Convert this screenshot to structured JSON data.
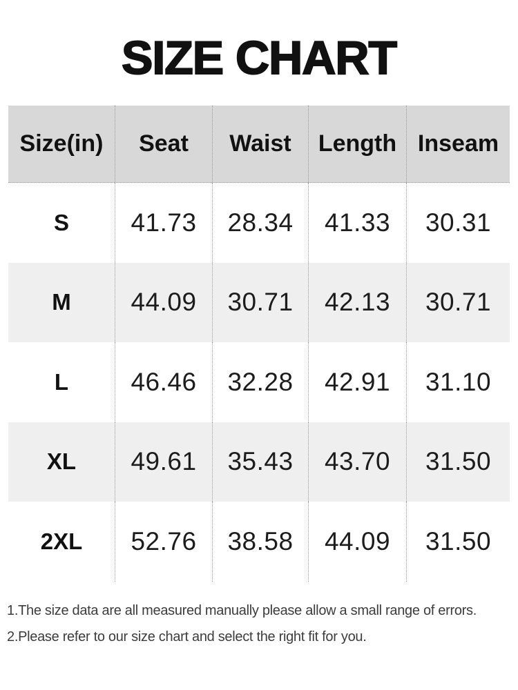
{
  "title": "SIZE CHART",
  "chart_data": {
    "type": "table",
    "title": "SIZE CHART",
    "columns": [
      "Size(in)",
      "Seat",
      "Waist",
      "Length",
      "Inseam"
    ],
    "rows": [
      [
        "S",
        "41.73",
        "28.34",
        "41.33",
        "30.31"
      ],
      [
        "M",
        "44.09",
        "30.71",
        "42.13",
        "30.71"
      ],
      [
        "L",
        "46.46",
        "32.28",
        "42.91",
        "31.10"
      ],
      [
        "XL",
        "49.61",
        "35.43",
        "43.70",
        "31.50"
      ],
      [
        "2XL",
        "52.76",
        "38.58",
        "44.09",
        "31.50"
      ]
    ]
  },
  "notes": [
    "1.The size data are all measured manually please allow a small range of errors.",
    "2.Please refer to our size chart and select the right fit for you."
  ],
  "colors": {
    "title_text": "#111111",
    "header_bg": "#d8d8d8",
    "alt_row_bg": "#efefef",
    "divider": "#9c9c9c",
    "cell_text": "#1c1c1c",
    "note_text": "#3c3c3c"
  }
}
